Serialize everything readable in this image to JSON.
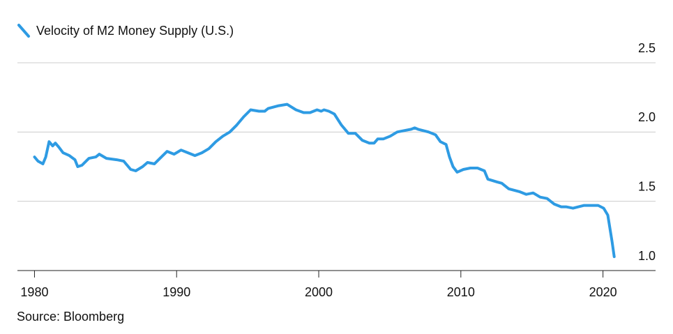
{
  "chart_data": {
    "type": "line",
    "source": "Source: Bloomberg",
    "series": [
      {
        "name": "Velocity of M2 Money Supply (U.S.)",
        "color": "#2e9be3",
        "x": [
          1980.0,
          1980.25,
          1980.59,
          1980.79,
          1981.03,
          1981.28,
          1981.47,
          1981.72,
          1982.01,
          1982.45,
          1982.85,
          1983.04,
          1983.34,
          1983.83,
          1984.32,
          1984.56,
          1985.06,
          1985.79,
          1986.28,
          1986.77,
          1987.12,
          1987.61,
          1987.95,
          1988.44,
          1988.83,
          1989.33,
          1989.82,
          1990.31,
          1990.8,
          1991.29,
          1991.78,
          1992.27,
          1992.76,
          1993.25,
          1993.74,
          1994.23,
          1994.72,
          1995.21,
          1995.8,
          1996.2,
          1996.44,
          1997.18,
          1997.77,
          1998.4,
          1998.94,
          1999.39,
          1999.88,
          2000.17,
          2000.37,
          2000.71,
          2001.1,
          2001.6,
          2002.09,
          2002.58,
          2003.07,
          2003.56,
          2003.9,
          2004.15,
          2004.54,
          2005.03,
          2005.52,
          2006.01,
          2006.5,
          2006.75,
          2006.99,
          2007.73,
          2008.22,
          2008.56,
          2008.96,
          2009.2,
          2009.45,
          2009.74,
          2010.18,
          2010.67,
          2011.17,
          2011.66,
          2011.9,
          2012.54,
          2012.88,
          2013.37,
          2014.11,
          2014.6,
          2015.09,
          2015.58,
          2016.07,
          2016.56,
          2017.06,
          2017.4,
          2017.89,
          2018.28,
          2018.67,
          2019.17,
          2019.66,
          2020.05,
          2020.34,
          2020.64,
          2020.79
        ],
        "values": [
          1.82,
          1.79,
          1.77,
          1.82,
          1.93,
          1.9,
          1.92,
          1.89,
          1.85,
          1.83,
          1.8,
          1.75,
          1.76,
          1.81,
          1.82,
          1.84,
          1.81,
          1.8,
          1.79,
          1.73,
          1.72,
          1.75,
          1.78,
          1.77,
          1.81,
          1.86,
          1.84,
          1.87,
          1.85,
          1.83,
          1.85,
          1.88,
          1.93,
          1.97,
          2.0,
          2.05,
          2.11,
          2.16,
          2.15,
          2.15,
          2.17,
          2.19,
          2.2,
          2.16,
          2.14,
          2.14,
          2.16,
          2.15,
          2.16,
          2.15,
          2.13,
          2.05,
          1.99,
          1.99,
          1.94,
          1.92,
          1.92,
          1.95,
          1.95,
          1.97,
          2.0,
          2.01,
          2.02,
          2.03,
          2.02,
          2.0,
          1.98,
          1.93,
          1.91,
          1.82,
          1.75,
          1.71,
          1.73,
          1.74,
          1.74,
          1.72,
          1.66,
          1.64,
          1.63,
          1.59,
          1.57,
          1.55,
          1.56,
          1.53,
          1.52,
          1.48,
          1.46,
          1.46,
          1.45,
          1.46,
          1.47,
          1.47,
          1.47,
          1.45,
          1.4,
          1.21,
          1.1
        ]
      }
    ],
    "xlim": [
      1978.8,
      2023.7
    ],
    "xticks": [
      1980,
      1990,
      2000,
      2010,
      2020
    ],
    "ylim": [
      1.0,
      2.5
    ],
    "yticks": [
      {
        "value": 1.0,
        "label": "1.0"
      },
      1.5,
      {
        "value": 2.0,
        "label": "2.0"
      },
      2.5
    ],
    "grid": true
  }
}
